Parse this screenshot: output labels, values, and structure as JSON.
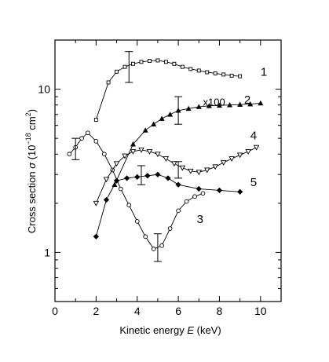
{
  "chart_data": {
    "type": "line",
    "title": "",
    "xlabel_parts": [
      "Kinetic energy ",
      "E",
      "  (keV)"
    ],
    "ylabel_parts": [
      "Cross section ",
      "σ",
      " (10",
      "−18",
      " cm",
      "2",
      ")"
    ],
    "xlim": [
      0,
      11
    ],
    "ylim": [
      0.5,
      20
    ],
    "yscale": "log",
    "grid": false,
    "x_ticks": [
      0,
      2,
      4,
      6,
      8,
      10
    ],
    "y_ticks": [
      1,
      10
    ],
    "series": [
      {
        "name": "1",
        "marker": "square-open",
        "x": [
          2.0,
          2.6,
          3.0,
          3.4,
          3.8,
          4.2,
          4.6,
          5.0,
          5.4,
          5.8,
          6.2,
          6.6,
          7.0,
          7.4,
          7.8,
          8.2,
          8.6,
          9.0
        ],
        "y": [
          6.5,
          11.0,
          12.8,
          13.7,
          14.3,
          14.7,
          14.9,
          15.0,
          14.7,
          14.3,
          13.7,
          13.3,
          13.0,
          12.7,
          12.5,
          12.3,
          12.1,
          12.0
        ]
      },
      {
        "name": "2",
        "marker": "triangle-filled",
        "annotation": "x100",
        "x": [
          2.9,
          3.8,
          4.4,
          4.8,
          5.2,
          5.6,
          6.0,
          6.5,
          7.0,
          7.5,
          8.0,
          8.5,
          9.0,
          9.5,
          10.0
        ],
        "y": [
          2.6,
          4.6,
          5.6,
          6.1,
          6.6,
          7.0,
          7.4,
          7.6,
          7.8,
          7.9,
          7.95,
          8.0,
          8.05,
          8.1,
          8.2
        ]
      },
      {
        "name": "3",
        "marker": "circle-open",
        "x": [
          0.7,
          1.0,
          1.3,
          1.6,
          2.0,
          2.4,
          2.8,
          3.2,
          3.6,
          4.0,
          4.4,
          4.8,
          5.2,
          5.6,
          6.0,
          6.4,
          6.8,
          7.2
        ],
        "y": [
          4.0,
          4.4,
          5.0,
          5.4,
          4.8,
          4.0,
          3.2,
          2.45,
          1.95,
          1.55,
          1.25,
          1.05,
          1.1,
          1.4,
          1.8,
          2.05,
          2.2,
          2.3
        ]
      },
      {
        "name": "4",
        "marker": "triangle-down-open",
        "x": [
          2.0,
          2.5,
          3.0,
          3.4,
          3.8,
          4.2,
          4.6,
          5.0,
          5.4,
          5.8,
          6.2,
          6.6,
          7.0,
          7.4,
          7.8,
          8.2,
          8.6,
          9.0,
          9.4,
          9.8
        ],
        "y": [
          2.0,
          2.8,
          3.5,
          3.9,
          4.15,
          4.25,
          4.15,
          4.0,
          3.75,
          3.5,
          3.3,
          3.15,
          3.1,
          3.2,
          3.35,
          3.55,
          3.75,
          3.95,
          4.15,
          4.4
        ]
      },
      {
        "name": "5",
        "marker": "diamond-filled",
        "x": [
          2.0,
          2.5,
          3.0,
          3.5,
          4.0,
          4.5,
          5.0,
          5.5,
          6.0,
          7.0,
          8.0,
          9.0
        ],
        "y": [
          1.25,
          2.1,
          2.75,
          2.85,
          2.9,
          2.95,
          3.0,
          2.85,
          2.6,
          2.45,
          2.4,
          2.35
        ]
      }
    ],
    "error_bars": [
      {
        "x": 1.0,
        "y": 4.4,
        "low": 3.7,
        "high": 5.0
      },
      {
        "x": 3.6,
        "y": 14.0,
        "low": 11.0,
        "high": 17.0
      },
      {
        "x": 4.2,
        "y": 3.0,
        "low": 2.6,
        "high": 3.4
      },
      {
        "x": 5.0,
        "y": 1.05,
        "low": 0.88,
        "high": 1.3
      },
      {
        "x": 6.0,
        "y": 7.4,
        "low": 6.1,
        "high": 9.0
      },
      {
        "x": 6.0,
        "y": 3.25,
        "low": 2.85,
        "high": 3.6
      }
    ],
    "curve_labels": [
      {
        "text": "1",
        "x": 10.0,
        "y": 12.8
      },
      {
        "text": "2",
        "x": 9.2,
        "y": 8.6
      },
      {
        "text": "x100",
        "x": 7.2,
        "y": 8.4
      },
      {
        "text": "4",
        "x": 9.5,
        "y": 5.2
      },
      {
        "text": "5",
        "x": 9.5,
        "y": 2.7
      },
      {
        "text": "3",
        "x": 6.9,
        "y": 1.6
      }
    ]
  }
}
